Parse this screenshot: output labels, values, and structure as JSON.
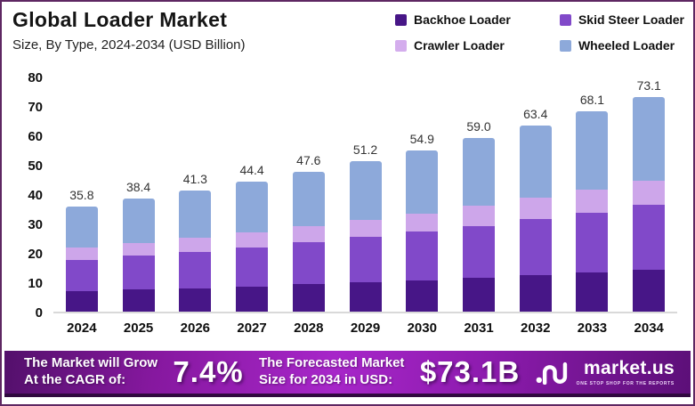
{
  "header": {
    "title": "Global Loader Market",
    "subtitle": "Size, By Type, 2024-2034 (USD Billion)"
  },
  "legend": [
    {
      "label": "Backhoe Loader",
      "color": "#471687"
    },
    {
      "label": "Skid Steer Loader",
      "color": "#8149c9"
    },
    {
      "label": "Crawler Loader",
      "color": "#d4aded"
    },
    {
      "label": "Wheeled Loader",
      "color": "#8da9da"
    }
  ],
  "chart_data": {
    "type": "bar",
    "stacked": true,
    "title": "Global Loader Market",
    "subtitle": "Size, By Type, 2024-2034 (USD Billion)",
    "xlabel": "",
    "ylabel": "USD Billion",
    "categories": [
      "2024",
      "2025",
      "2026",
      "2027",
      "2028",
      "2029",
      "2030",
      "2031",
      "2032",
      "2033",
      "2034"
    ],
    "series": [
      {
        "name": "Backhoe Loader",
        "color": "#471687",
        "values": [
          7.0,
          7.5,
          8.0,
          8.6,
          9.3,
          10.0,
          10.7,
          11.5,
          12.4,
          13.3,
          14.3
        ]
      },
      {
        "name": "Skid Steer Loader",
        "color": "#8149c9",
        "values": [
          10.7,
          11.5,
          12.4,
          13.3,
          14.3,
          15.4,
          16.5,
          17.7,
          19.1,
          20.5,
          22.0
        ]
      },
      {
        "name": "Crawler Loader",
        "color": "#cda6ea",
        "values": [
          4.1,
          4.4,
          4.7,
          5.1,
          5.5,
          5.9,
          6.3,
          6.8,
          7.3,
          7.8,
          8.4
        ]
      },
      {
        "name": "Wheeled Loader",
        "color": "#8da9da",
        "values": [
          14.0,
          15.0,
          16.2,
          17.4,
          18.5,
          19.9,
          21.4,
          23.0,
          24.6,
          26.5,
          28.4
        ]
      }
    ],
    "totals": [
      35.8,
      38.4,
      41.3,
      44.4,
      47.6,
      51.2,
      54.9,
      59.0,
      63.4,
      68.1,
      73.1
    ],
    "totals_labels": [
      "35.8",
      "38.4",
      "41.3",
      "44.4",
      "47.6",
      "51.2",
      "54.9",
      "59.0",
      "63.4",
      "68.1",
      "73.1"
    ],
    "y_ticks": [
      0,
      10,
      20,
      30,
      40,
      50,
      60,
      70,
      80
    ],
    "ylim": [
      0,
      80
    ],
    "grid": false,
    "legend_position": "top-right"
  },
  "footer": {
    "cagr_lines": [
      "The Market will Grow",
      "At the CAGR of:"
    ],
    "cagr_value": "7.4%",
    "forecast_lines": [
      "The Forecasted Market",
      "Size for 2034 in USD:"
    ],
    "forecast_value": "$73.1B",
    "brand": "market.us",
    "brand_tagline": "ONE STOP SHOP FOR THE REPORTS",
    "banner_color": "#a726c9"
  }
}
